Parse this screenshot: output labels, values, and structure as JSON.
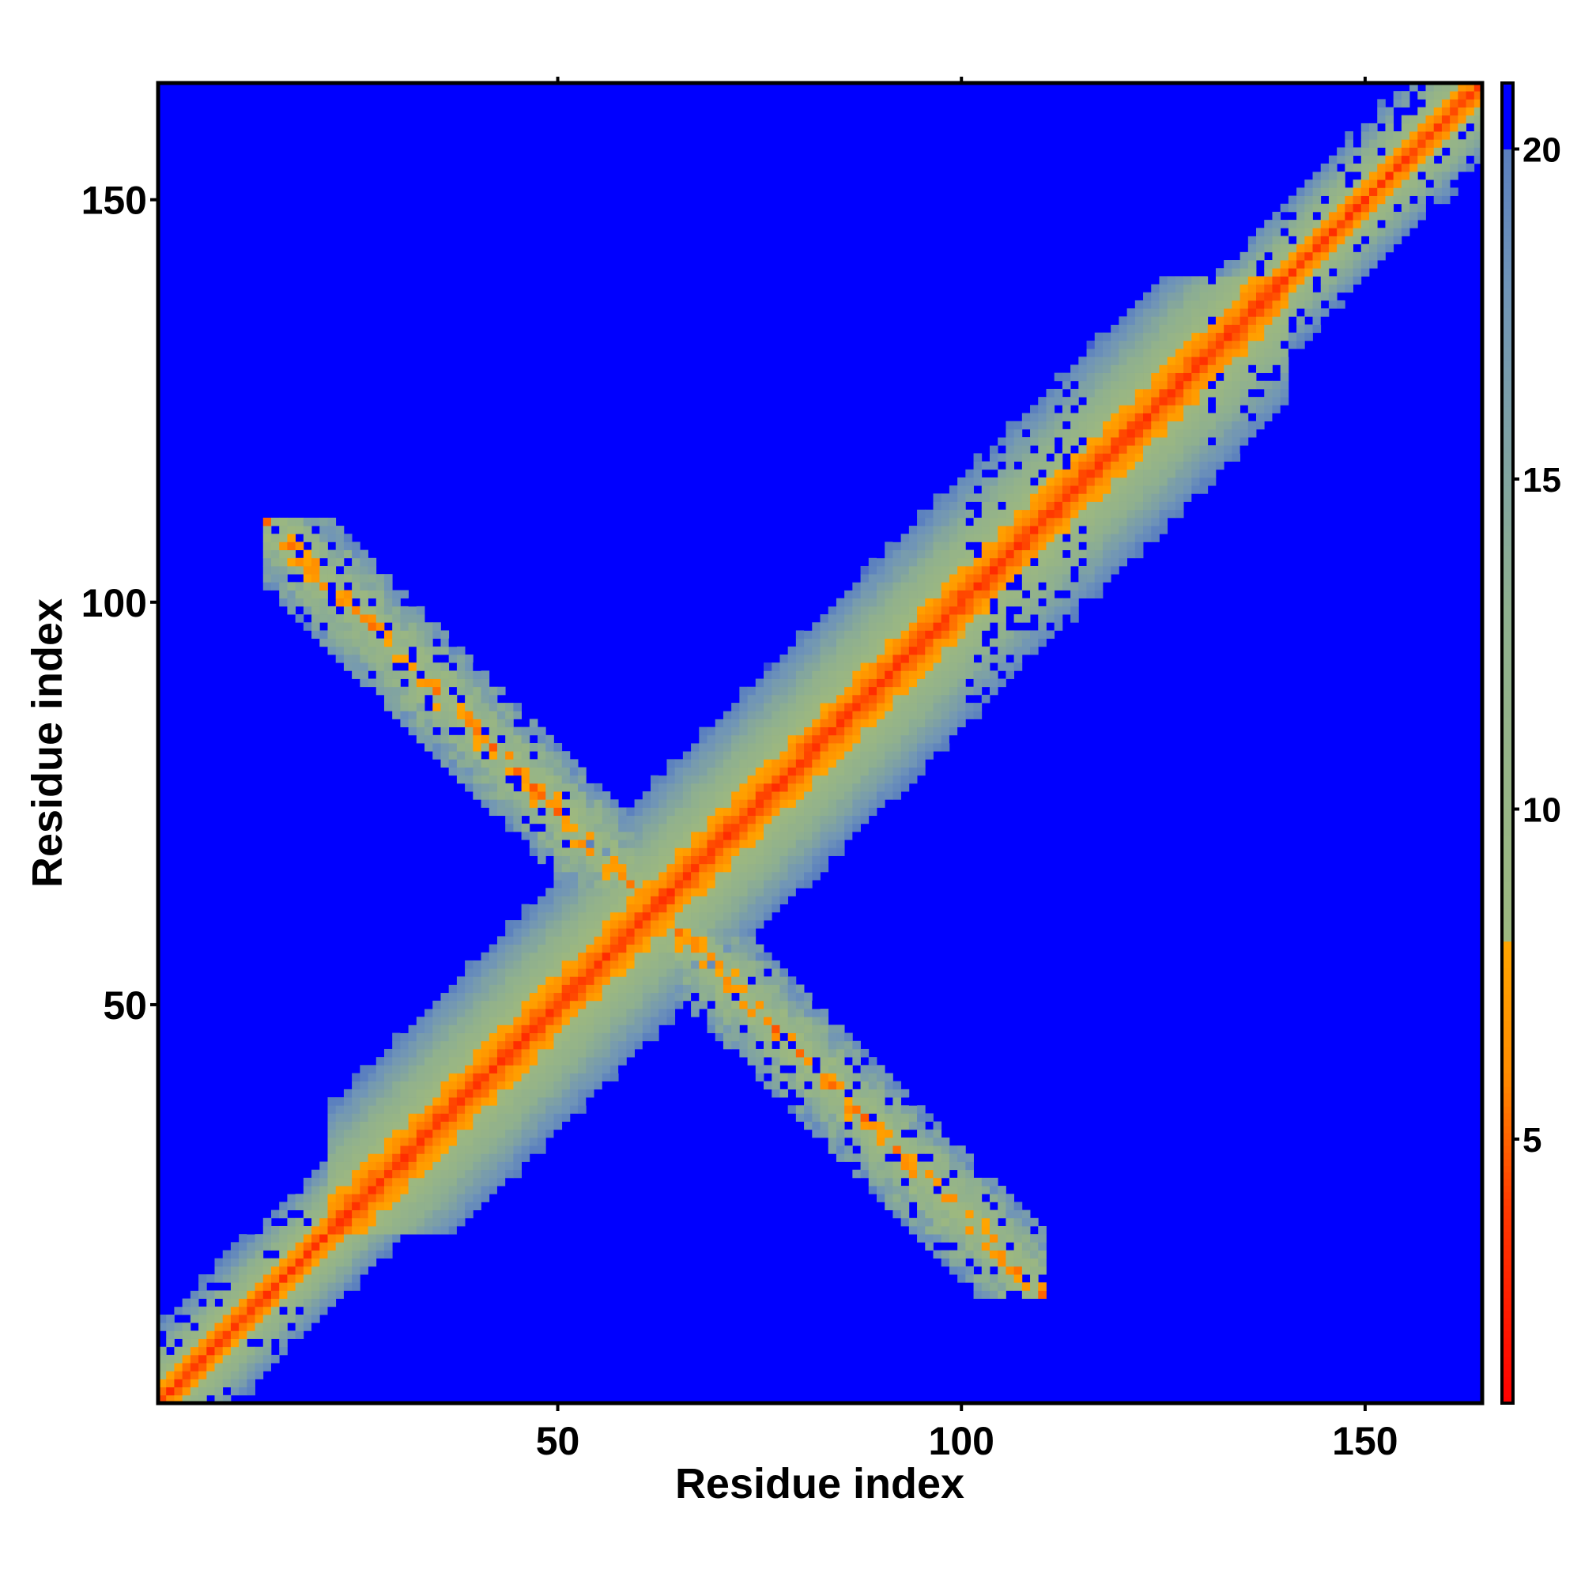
{
  "chart_data": {
    "type": "heatmap",
    "title": "",
    "xlabel": "Residue index",
    "ylabel": "Residue index",
    "xlim": [
      1,
      164
    ],
    "ylim": [
      1,
      164
    ],
    "x_ticks": [
      50,
      100,
      150
    ],
    "y_ticks": [
      50,
      100,
      150
    ],
    "grid": false,
    "colorbar": {
      "range": [
        1,
        21
      ],
      "ticks": [
        5,
        10,
        15,
        20
      ],
      "colors": [
        {
          "stop": 1,
          "color": "#ff0000"
        },
        {
          "stop": 4,
          "color": "#ff3a00"
        },
        {
          "stop": 6,
          "color": "#ff8c00"
        },
        {
          "stop": 8,
          "color": "#ffa500"
        },
        {
          "stop": 8.01,
          "color": "#9db87f"
        },
        {
          "stop": 13,
          "color": "#8fb08f"
        },
        {
          "stop": 18,
          "color": "#6f94b8"
        },
        {
          "stop": 20,
          "color": "#5a7fbf"
        },
        {
          "stop": 20.01,
          "color": "#0000ff"
        },
        {
          "stop": 21,
          "color": "#0000ff"
        }
      ]
    },
    "background_value": 21,
    "features": [
      {
        "kind": "diagonal",
        "x_range": [
          1,
          164
        ],
        "description_values": {
          "center": 3.8,
          "band_half_width": 16
        }
      },
      {
        "kind": "antidiagonal",
        "x_range": [
          14,
          110
        ],
        "y_range": [
          110,
          14
        ],
        "center": 7,
        "band_half_width": 7
      }
    ]
  }
}
